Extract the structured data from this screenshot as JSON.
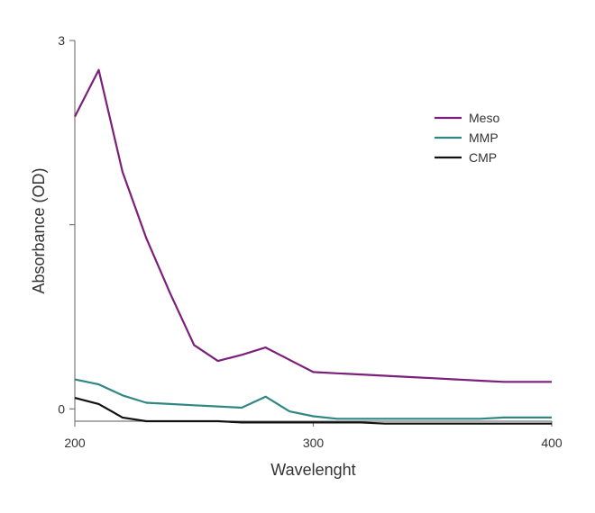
{
  "chart_data": {
    "type": "line",
    "title": "",
    "xlabel": "Wavelenght",
    "ylabel": "Absorbance (OD)",
    "xlim": [
      200,
      400
    ],
    "ylim": [
      -0.1,
      3.0
    ],
    "x_ticks": [
      200,
      300,
      400
    ],
    "x_tick_labels": [
      "200",
      "300",
      "400"
    ],
    "y_ticks": [
      0,
      1.5,
      3
    ],
    "y_tick_labels": [
      "0",
      "",
      "3"
    ],
    "grid": false,
    "legend_position": "top-right",
    "series": [
      {
        "name": "Meso",
        "color": "#7b1f7a",
        "x": [
          200,
          210,
          220,
          230,
          240,
          250,
          260,
          270,
          280,
          290,
          300,
          310,
          320,
          330,
          340,
          350,
          360,
          370,
          380,
          390,
          400
        ],
        "y": [
          2.38,
          2.76,
          1.93,
          1.39,
          0.94,
          0.52,
          0.39,
          0.44,
          0.5,
          0.4,
          0.3,
          0.29,
          0.28,
          0.27,
          0.26,
          0.25,
          0.24,
          0.23,
          0.22,
          0.22,
          0.22
        ]
      },
      {
        "name": "MMP",
        "color": "#2f8783",
        "x": [
          200,
          210,
          220,
          230,
          240,
          250,
          260,
          270,
          280,
          290,
          300,
          310,
          320,
          330,
          340,
          350,
          360,
          370,
          380,
          390,
          400
        ],
        "y": [
          0.24,
          0.2,
          0.11,
          0.05,
          0.04,
          0.03,
          0.02,
          0.01,
          0.1,
          -0.02,
          -0.06,
          -0.08,
          -0.08,
          -0.08,
          -0.08,
          -0.08,
          -0.08,
          -0.08,
          -0.07,
          -0.07,
          -0.07
        ]
      },
      {
        "name": "CMP",
        "color": "#111111",
        "x": [
          200,
          210,
          220,
          230,
          240,
          250,
          260,
          270,
          280,
          290,
          300,
          310,
          320,
          330,
          340,
          350,
          360,
          370,
          380,
          390,
          400
        ],
        "y": [
          0.09,
          0.04,
          -0.07,
          -0.1,
          -0.1,
          -0.1,
          -0.1,
          -0.11,
          -0.11,
          -0.11,
          -0.11,
          -0.11,
          -0.11,
          -0.12,
          -0.12,
          -0.12,
          -0.12,
          -0.12,
          -0.12,
          -0.12,
          -0.12
        ]
      }
    ]
  }
}
